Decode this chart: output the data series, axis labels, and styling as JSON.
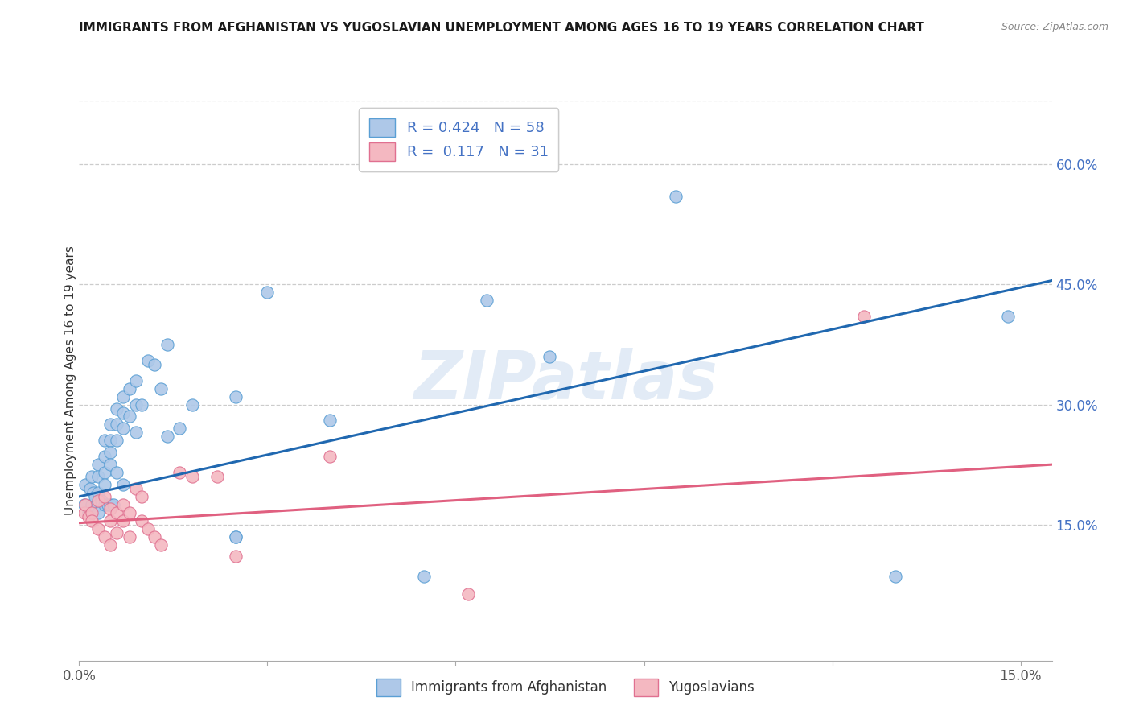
{
  "title": "IMMIGRANTS FROM AFGHANISTAN VS YUGOSLAVIAN UNEMPLOYMENT AMONG AGES 16 TO 19 YEARS CORRELATION CHART",
  "source": "Source: ZipAtlas.com",
  "ylabel": "Unemployment Among Ages 16 to 19 years",
  "xlim": [
    0.0,
    0.155
  ],
  "ylim": [
    -0.02,
    0.68
  ],
  "afghanistan_color": "#aec8e8",
  "yugoslavian_color": "#f4b8c1",
  "afghanistan_edge_color": "#5a9fd4",
  "yugoslavian_edge_color": "#e07090",
  "afghanistan_line_color": "#2068b0",
  "yugoslavian_line_color": "#e06080",
  "watermark": "ZIPatlas",
  "afghanistan_x": [
    0.0008,
    0.001,
    0.0015,
    0.0018,
    0.002,
    0.002,
    0.0022,
    0.0025,
    0.003,
    0.003,
    0.003,
    0.003,
    0.003,
    0.0035,
    0.004,
    0.004,
    0.004,
    0.004,
    0.004,
    0.0045,
    0.005,
    0.005,
    0.005,
    0.005,
    0.005,
    0.0055,
    0.006,
    0.006,
    0.006,
    0.006,
    0.007,
    0.007,
    0.007,
    0.007,
    0.008,
    0.008,
    0.009,
    0.009,
    0.009,
    0.01,
    0.011,
    0.012,
    0.013,
    0.014,
    0.014,
    0.016,
    0.018,
    0.025,
    0.025,
    0.03,
    0.04,
    0.055,
    0.065,
    0.075,
    0.095,
    0.13,
    0.148,
    0.025
  ],
  "afghanistan_y": [
    0.175,
    0.2,
    0.165,
    0.195,
    0.21,
    0.175,
    0.19,
    0.185,
    0.225,
    0.21,
    0.19,
    0.175,
    0.165,
    0.18,
    0.255,
    0.235,
    0.215,
    0.2,
    0.175,
    0.175,
    0.275,
    0.255,
    0.24,
    0.225,
    0.175,
    0.175,
    0.295,
    0.275,
    0.255,
    0.215,
    0.31,
    0.29,
    0.27,
    0.2,
    0.32,
    0.285,
    0.33,
    0.3,
    0.265,
    0.3,
    0.355,
    0.35,
    0.32,
    0.375,
    0.26,
    0.27,
    0.3,
    0.31,
    0.135,
    0.44,
    0.28,
    0.085,
    0.43,
    0.36,
    0.56,
    0.085,
    0.41,
    0.135
  ],
  "yugoslavian_x": [
    0.0008,
    0.001,
    0.0015,
    0.002,
    0.002,
    0.003,
    0.003,
    0.004,
    0.004,
    0.005,
    0.005,
    0.005,
    0.006,
    0.006,
    0.007,
    0.007,
    0.008,
    0.008,
    0.009,
    0.01,
    0.01,
    0.011,
    0.012,
    0.013,
    0.016,
    0.018,
    0.022,
    0.025,
    0.04,
    0.062,
    0.125
  ],
  "yugoslavian_y": [
    0.165,
    0.175,
    0.16,
    0.165,
    0.155,
    0.18,
    0.145,
    0.185,
    0.135,
    0.17,
    0.155,
    0.125,
    0.165,
    0.14,
    0.175,
    0.155,
    0.165,
    0.135,
    0.195,
    0.185,
    0.155,
    0.145,
    0.135,
    0.125,
    0.215,
    0.21,
    0.21,
    0.11,
    0.235,
    0.063,
    0.41
  ],
  "afg_trend_x": [
    0.0,
    0.155
  ],
  "afg_trend_y": [
    0.185,
    0.455
  ],
  "yug_trend_x": [
    0.0,
    0.155
  ],
  "yug_trend_y": [
    0.152,
    0.225
  ],
  "x_tick_positions": [
    0.0,
    0.03,
    0.06,
    0.09,
    0.12,
    0.15
  ],
  "x_tick_labels": [
    "0.0%",
    "",
    "",
    "",
    "",
    "15.0%"
  ],
  "y_tick_positions": [
    0.15,
    0.3,
    0.45,
    0.6
  ],
  "y_tick_labels": [
    "15.0%",
    "30.0%",
    "45.0%",
    "60.0%"
  ],
  "right_axis_color": "#4472c4",
  "legend1_text": "R = 0.424   N = 58",
  "legend2_text": "R =  0.117   N = 31",
  "bottom_legend1": "Immigrants from Afghanistan",
  "bottom_legend2": "Yugoslavians"
}
